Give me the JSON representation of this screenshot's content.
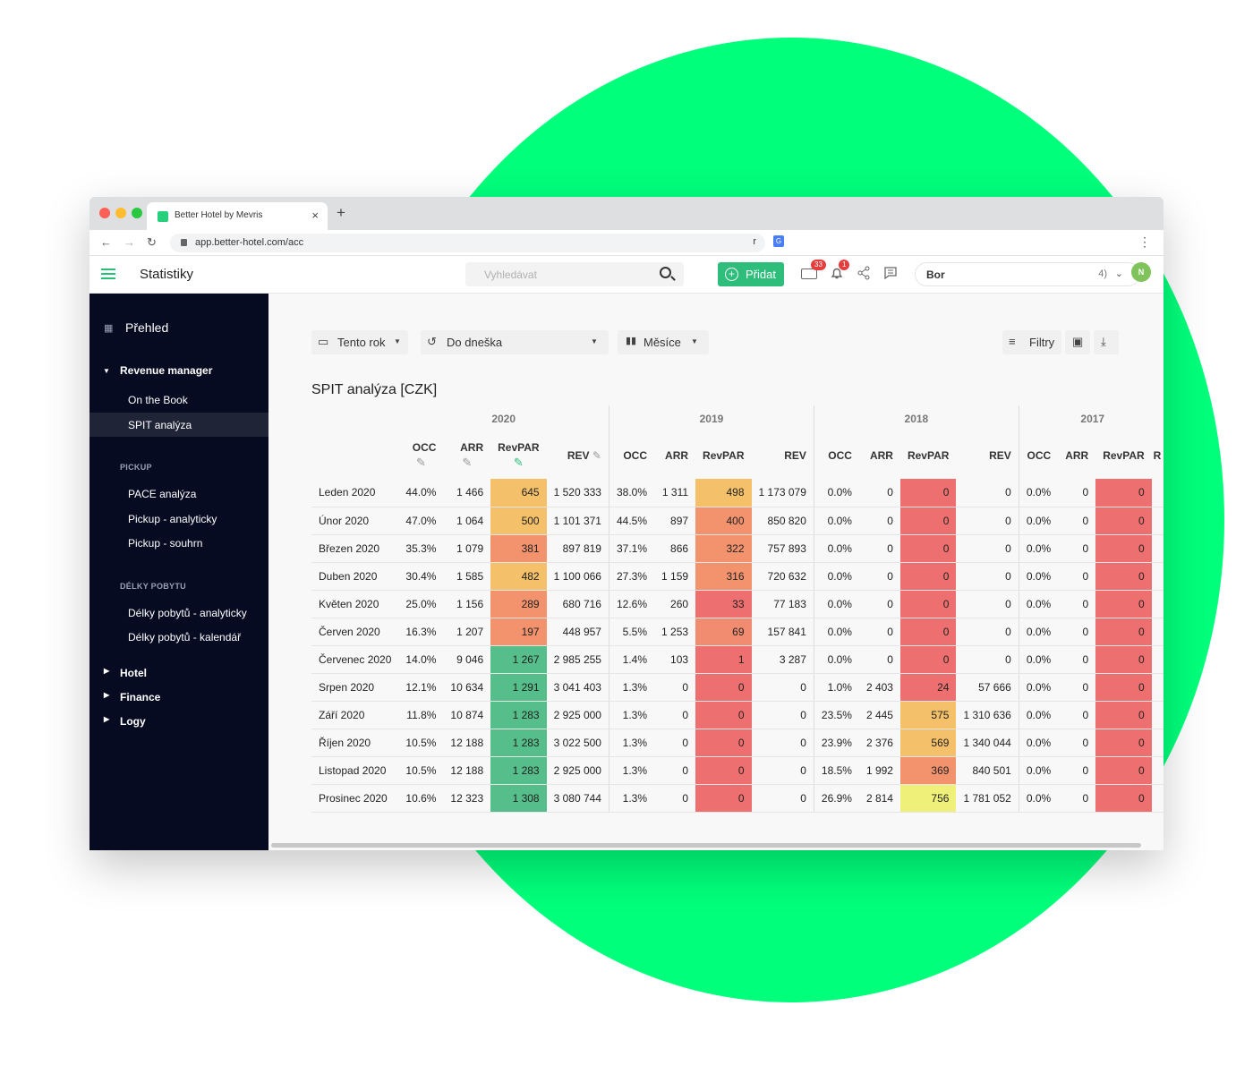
{
  "browser": {
    "tab_title": "Better Hotel by Mevris",
    "url": "app.better-hotel.com/acc",
    "url_suffix": "r",
    "new_tab": "+",
    "close": "×"
  },
  "header": {
    "title": "Statistiky",
    "search_placeholder": "Vyhledávat",
    "add_label": "Přidat",
    "add_plus": "+",
    "mail_badge": "33",
    "bell_badge": "1",
    "hotel_name": "Bor",
    "hotel_count": "4)",
    "avatar": "N"
  },
  "sidebar": {
    "overview": "Přehled",
    "revenue_manager": "Revenue manager",
    "on_the_book": "On the Book",
    "spit": "SPIT analýza",
    "pickup_section": "PICKUP",
    "pace": "PACE analýza",
    "pickup_analytic": "Pickup - analyticky",
    "pickup_summary": "Pickup - souhrn",
    "stay_section": "DÉLKY POBYTU",
    "stay_analytic": "Délky pobytů - analyticky",
    "stay_calendar": "Délky pobytů - kalendář",
    "hotel": "Hotel",
    "finance": "Finance",
    "logs": "Logy"
  },
  "filters": {
    "year": "Tento rok",
    "until": "Do dneška",
    "months": "Měsíce",
    "filters": "Filtry"
  },
  "section_title": "SPIT analýza [CZK]",
  "table": {
    "years": [
      "2020",
      "2019",
      "2018",
      "2017"
    ],
    "cols_2020": [
      "OCC",
      "ARR",
      "RevPAR",
      "REV"
    ],
    "cols_2019": [
      "OCC",
      "ARR",
      "RevPAR",
      "REV"
    ],
    "cols_2018": [
      "OCC",
      "ARR",
      "RevPAR",
      "REV"
    ],
    "cols_2017": [
      "OCC",
      "ARR",
      "RevPAR",
      "R"
    ],
    "rows": [
      {
        "month": "Leden 2020",
        "y2020": [
          "44.0%",
          "1 466",
          "645",
          "1 520 333"
        ],
        "y2019": [
          "38.0%",
          "1 311",
          "498",
          "1 173 079"
        ],
        "y2018": [
          "0.0%",
          "0",
          "0",
          "0"
        ],
        "y2017": [
          "0.0%",
          "0",
          "0"
        ]
      },
      {
        "month": "Únor 2020",
        "y2020": [
          "47.0%",
          "1 064",
          "500",
          "1 101 371"
        ],
        "y2019": [
          "44.5%",
          "897",
          "400",
          "850 820"
        ],
        "y2018": [
          "0.0%",
          "0",
          "0",
          "0"
        ],
        "y2017": [
          "0.0%",
          "0",
          "0"
        ]
      },
      {
        "month": "Březen 2020",
        "y2020": [
          "35.3%",
          "1 079",
          "381",
          "897 819"
        ],
        "y2019": [
          "37.1%",
          "866",
          "322",
          "757 893"
        ],
        "y2018": [
          "0.0%",
          "0",
          "0",
          "0"
        ],
        "y2017": [
          "0.0%",
          "0",
          "0"
        ]
      },
      {
        "month": "Duben 2020",
        "y2020": [
          "30.4%",
          "1 585",
          "482",
          "1 100 066"
        ],
        "y2019": [
          "27.3%",
          "1 159",
          "316",
          "720 632"
        ],
        "y2018": [
          "0.0%",
          "0",
          "0",
          "0"
        ],
        "y2017": [
          "0.0%",
          "0",
          "0"
        ]
      },
      {
        "month": "Květen 2020",
        "y2020": [
          "25.0%",
          "1 156",
          "289",
          "680 716"
        ],
        "y2019": [
          "12.6%",
          "260",
          "33",
          "77 183"
        ],
        "y2018": [
          "0.0%",
          "0",
          "0",
          "0"
        ],
        "y2017": [
          "0.0%",
          "0",
          "0"
        ]
      },
      {
        "month": "Červen 2020",
        "y2020": [
          "16.3%",
          "1 207",
          "197",
          "448 957"
        ],
        "y2019": [
          "5.5%",
          "1 253",
          "69",
          "157 841"
        ],
        "y2018": [
          "0.0%",
          "0",
          "0",
          "0"
        ],
        "y2017": [
          "0.0%",
          "0",
          "0"
        ]
      },
      {
        "month": "Červenec 2020",
        "y2020": [
          "14.0%",
          "9 046",
          "1 267",
          "2 985 255"
        ],
        "y2019": [
          "1.4%",
          "103",
          "1",
          "3 287"
        ],
        "y2018": [
          "0.0%",
          "0",
          "0",
          "0"
        ],
        "y2017": [
          "0.0%",
          "0",
          "0"
        ]
      },
      {
        "month": "Srpen 2020",
        "y2020": [
          "12.1%",
          "10 634",
          "1 291",
          "3 041 403"
        ],
        "y2019": [
          "1.3%",
          "0",
          "0",
          "0"
        ],
        "y2018": [
          "1.0%",
          "2 403",
          "24",
          "57 666"
        ],
        "y2017": [
          "0.0%",
          "0",
          "0"
        ]
      },
      {
        "month": "Září 2020",
        "y2020": [
          "11.8%",
          "10 874",
          "1 283",
          "2 925 000"
        ],
        "y2019": [
          "1.3%",
          "0",
          "0",
          "0"
        ],
        "y2018": [
          "23.5%",
          "2 445",
          "575",
          "1 310 636"
        ],
        "y2017": [
          "0.0%",
          "0",
          "0"
        ]
      },
      {
        "month": "Říjen 2020",
        "y2020": [
          "10.5%",
          "12 188",
          "1 283",
          "3 022 500"
        ],
        "y2019": [
          "1.3%",
          "0",
          "0",
          "0"
        ],
        "y2018": [
          "23.9%",
          "2 376",
          "569",
          "1 340 044"
        ],
        "y2017": [
          "0.0%",
          "0",
          "0"
        ]
      },
      {
        "month": "Listopad 2020",
        "y2020": [
          "10.5%",
          "12 188",
          "1 283",
          "2 925 000"
        ],
        "y2019": [
          "1.3%",
          "0",
          "0",
          "0"
        ],
        "y2018": [
          "18.5%",
          "1 992",
          "369",
          "840 501"
        ],
        "y2017": [
          "0.0%",
          "0",
          "0"
        ]
      },
      {
        "month": "Prosinec 2020",
        "y2020": [
          "10.6%",
          "12 323",
          "1 308",
          "3 080 744"
        ],
        "y2019": [
          "1.3%",
          "0",
          "0",
          "0"
        ],
        "y2018": [
          "26.9%",
          "2 814",
          "756",
          "1 781 052"
        ],
        "y2017": [
          "0.0%",
          "0",
          "0"
        ]
      }
    ]
  },
  "colors": {
    "accent": "#2ebd7b",
    "sidebar_bg": "#070b22",
    "circle": "#00ff7b",
    "heat_high": "#55be8b",
    "heat_top": "#eff079",
    "heat_mid": "#f4c16a",
    "heat_low": "#f3936e",
    "heat_zero": "#ee6f6f"
  }
}
